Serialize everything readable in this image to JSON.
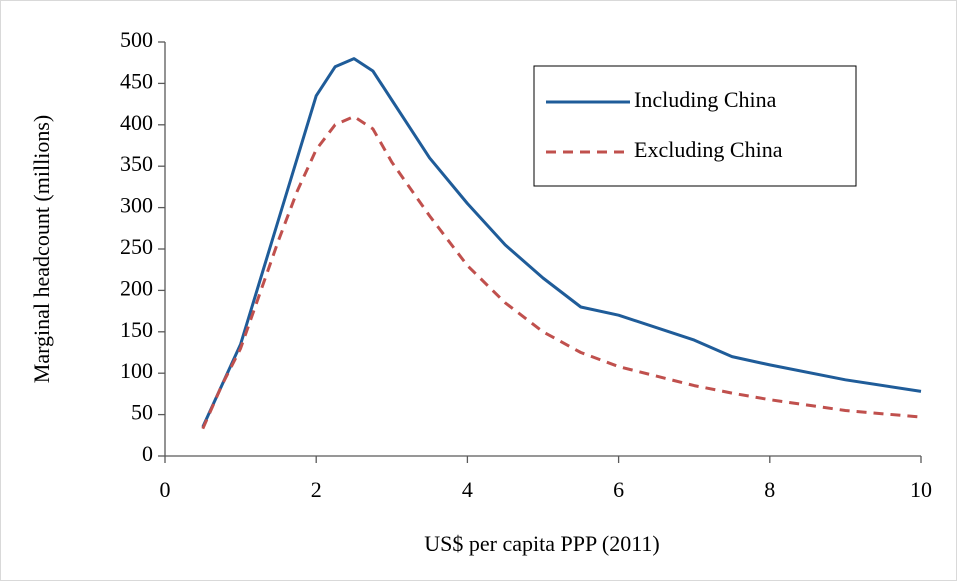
{
  "chart_data": {
    "type": "line",
    "xlabel": "US$ per capita PPP (2011)",
    "ylabel": "Marginal headcount (millions)",
    "x": [
      0.5,
      0.75,
      1.0,
      1.25,
      1.5,
      1.75,
      2.0,
      2.25,
      2.5,
      2.75,
      3.0,
      3.5,
      4.0,
      4.5,
      5.0,
      5.5,
      6.0,
      7.0,
      7.5,
      8.0,
      9.0,
      10.0
    ],
    "series": [
      {
        "name": "Including China",
        "color": "#1f5c99",
        "dash": false,
        "values": [
          35,
          85,
          135,
          210,
          285,
          360,
          435,
          470,
          480,
          465,
          430,
          360,
          305,
          255,
          215,
          180,
          170,
          140,
          120,
          110,
          92,
          78
        ]
      },
      {
        "name": "Excluding China",
        "color": "#c0504d",
        "dash": true,
        "values": [
          33,
          85,
          130,
          195,
          260,
          320,
          370,
          400,
          410,
          395,
          355,
          290,
          230,
          185,
          150,
          125,
          108,
          85,
          76,
          68,
          55,
          47
        ]
      }
    ],
    "xlim": [
      0,
      10
    ],
    "xticks": [
      0,
      2,
      4,
      6,
      8,
      10
    ],
    "ylim": [
      0,
      500
    ],
    "yticks": [
      0,
      50,
      100,
      150,
      200,
      250,
      300,
      350,
      400,
      450,
      500
    ],
    "grid": false,
    "legend": "upper right"
  }
}
